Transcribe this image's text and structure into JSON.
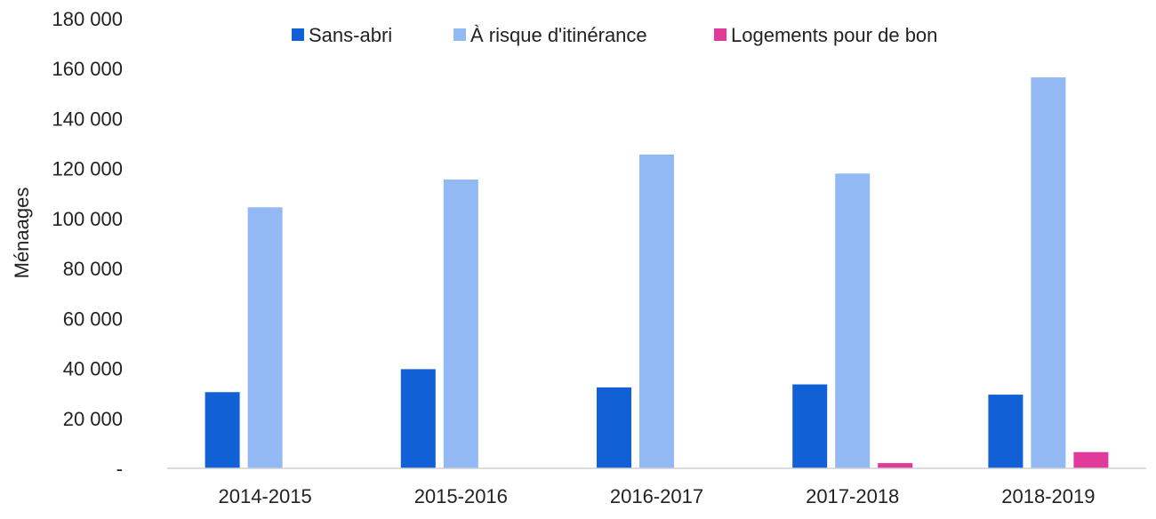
{
  "chart_data": {
    "type": "bar",
    "title": "",
    "xlabel": "",
    "ylabel": "Ménaages",
    "ylim": [
      0,
      180000
    ],
    "yticks": [
      {
        "value": 0,
        "label": "-"
      },
      {
        "value": 20000,
        "label": "20 000"
      },
      {
        "value": 40000,
        "label": "40 000"
      },
      {
        "value": 60000,
        "label": "60 000"
      },
      {
        "value": 80000,
        "label": "80 000"
      },
      {
        "value": 100000,
        "label": "100 000"
      },
      {
        "value": 120000,
        "label": "120 000"
      },
      {
        "value": 140000,
        "label": "140 000"
      },
      {
        "value": 160000,
        "label": "160 000"
      },
      {
        "value": 180000,
        "label": "180 000"
      }
    ],
    "categories": [
      "2014-2015",
      "2015-2016",
      "2016-2017",
      "2017-2018",
      "2018-2019"
    ],
    "series": [
      {
        "name": "Sans-abri",
        "color": "#1160d6",
        "values": [
          30500,
          39700,
          32400,
          33600,
          29500
        ]
      },
      {
        "name": "À risque d'itinérance",
        "color": "#93b9f4",
        "values": [
          104500,
          115600,
          125600,
          118000,
          156500
        ]
      },
      {
        "name": "Logements pour de bon",
        "color": "#e23a9a",
        "values": [
          0,
          0,
          0,
          2100,
          6500
        ]
      }
    ],
    "grid": false,
    "legend_position": "top"
  }
}
